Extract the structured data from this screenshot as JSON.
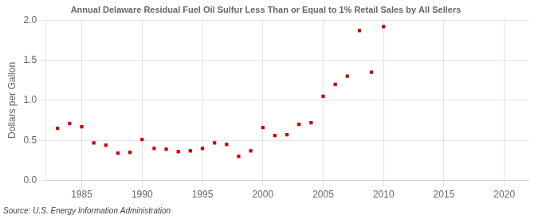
{
  "chart_data": {
    "type": "scatter",
    "title": "Annual Delaware Residual Fuel Oil Sulfur Less Than or Equal to 1% Retail Sales by All Sellers",
    "ylabel": "Dollars per Gallon",
    "source": "Source: U.S. Energy Information Administration",
    "x": [
      1983,
      1984,
      1985,
      1986,
      1987,
      1988,
      1989,
      1990,
      1991,
      1992,
      1993,
      1994,
      1995,
      1996,
      1997,
      1998,
      1999,
      2000,
      2001,
      2002,
      2003,
      2004,
      2005,
      2006,
      2007,
      2008,
      2009,
      2010
    ],
    "values": [
      0.65,
      0.71,
      0.67,
      0.47,
      0.44,
      0.34,
      0.35,
      0.51,
      0.4,
      0.39,
      0.36,
      0.37,
      0.4,
      0.47,
      0.45,
      0.3,
      0.37,
      0.66,
      0.56,
      0.57,
      0.7,
      0.72,
      1.05,
      1.2,
      1.3,
      1.87,
      1.35,
      1.92
    ],
    "color": "#cc0000",
    "marker": "square",
    "xlim": [
      1982,
      2022
    ],
    "xticks": [
      1985,
      1990,
      1995,
      2000,
      2005,
      2010,
      2015,
      2020
    ],
    "ylim": [
      0.0,
      2.0
    ],
    "yticks": [
      {
        "value": 0.0,
        "label": "0.0"
      },
      0.5,
      {
        "value": 1.0,
        "label": "1.0"
      },
      1.5,
      {
        "value": 2.0,
        "label": "2.0"
      }
    ],
    "grid": true
  }
}
